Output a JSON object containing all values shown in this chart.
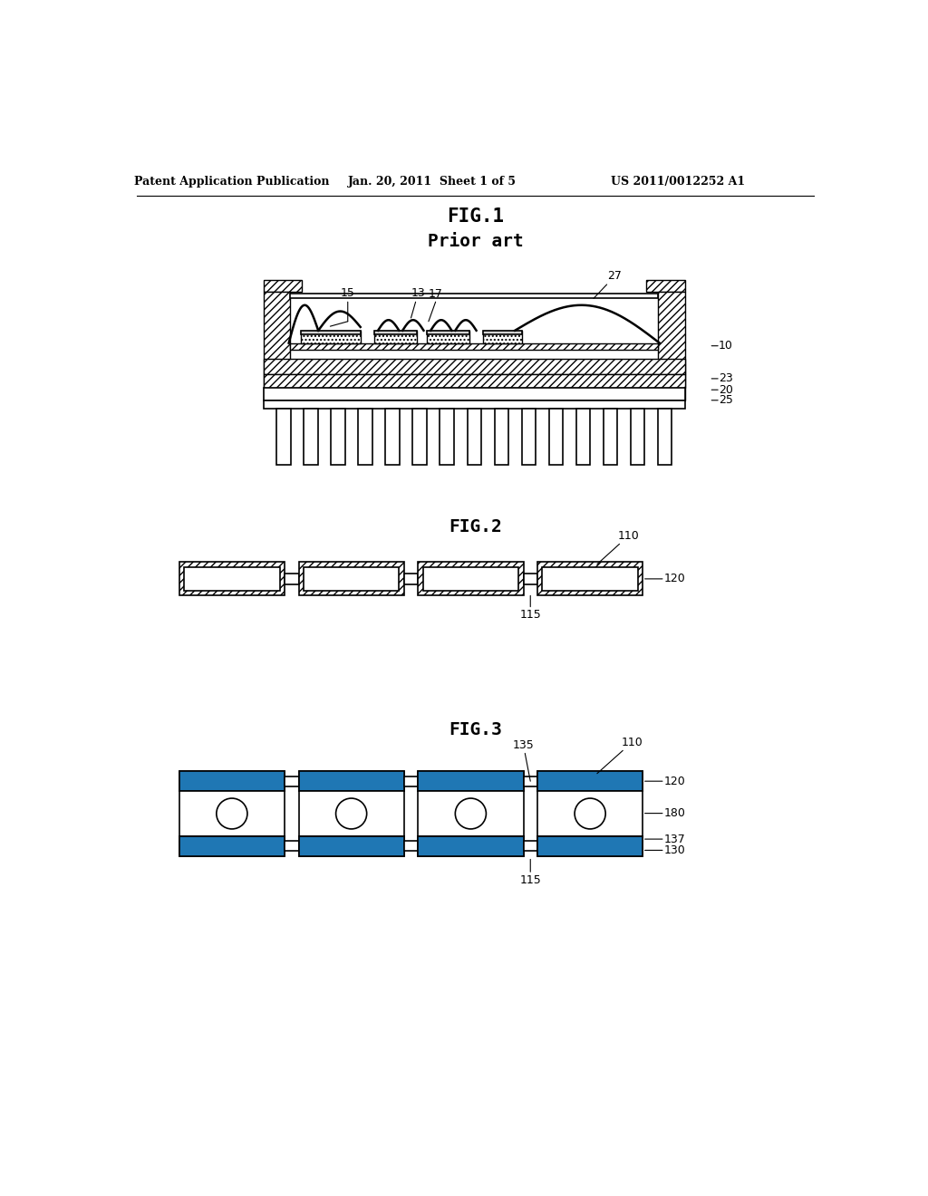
{
  "bg_color": "#ffffff",
  "header_left": "Patent Application Publication",
  "header_mid": "Jan. 20, 2011  Sheet 1 of 5",
  "header_right": "US 2011/0012252 A1",
  "fig1_title": "FIG.1",
  "fig1_subtitle": "Prior art",
  "fig2_title": "FIG.2",
  "fig3_title": "FIG.3",
  "line_color": "#000000",
  "line_width": 1.2
}
